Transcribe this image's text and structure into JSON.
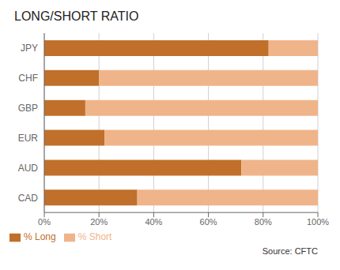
{
  "chart_data": {
    "type": "bar",
    "title": "LONG/SHORT RATIO",
    "orientation": "horizontal",
    "stacked": true,
    "categories": [
      "CAD",
      "AUD",
      "EUR",
      "GBP",
      "CHF",
      "JPY"
    ],
    "series": [
      {
        "name": "% Long",
        "color": "#c0702a",
        "values": [
          34,
          72,
          22,
          15,
          20,
          82
        ]
      },
      {
        "name": "% Short",
        "color": "#f0b48a",
        "values": [
          66,
          28,
          78,
          85,
          80,
          18
        ]
      }
    ],
    "xlim": [
      0,
      100
    ],
    "xticks": [
      {
        "value": 0,
        "label": "0%"
      },
      {
        "value": 20,
        "label": "20%"
      },
      {
        "value": 40,
        "label": "40%"
      },
      {
        "value": 60,
        "label": "60%"
      },
      {
        "value": 80,
        "label": "80%"
      },
      {
        "value": 100,
        "label": "100%"
      }
    ],
    "grid": true,
    "legend": "bottom left",
    "annotations": [
      "Source: CFTC"
    ]
  }
}
